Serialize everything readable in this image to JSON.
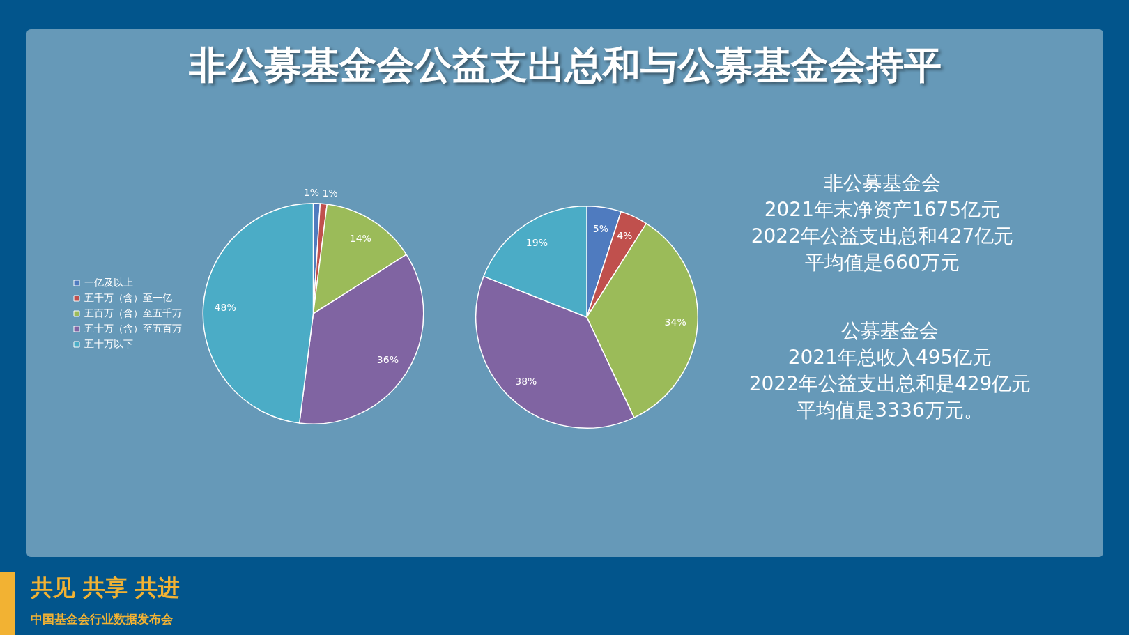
{
  "chart_data": [
    {
      "type": "pie",
      "title": "非公募基金会公益支出总和与公募基金会持平",
      "categories": [
        "一亿及以上",
        "五千万（含）至一亿",
        "五百万（含）至五千万",
        "五十万（含）至五百万",
        "五十万以下"
      ],
      "values": [
        1,
        1,
        14,
        36,
        48
      ],
      "colors": [
        "#4f7bbf",
        "#c0504d",
        "#9bbb59",
        "#8064a2",
        "#4bacc6"
      ],
      "value_labels": [
        "1%",
        "1%",
        "14%",
        "36%",
        "48%"
      ],
      "legend": "left"
    },
    {
      "type": "pie",
      "categories": [
        null,
        null,
        null,
        null,
        null
      ],
      "values": [
        5,
        4,
        34,
        38,
        19
      ],
      "colors": [
        "#4f7bbf",
        "#c0504d",
        "#9bbb59",
        "#8064a2",
        "#4bacc6"
      ],
      "value_labels": [
        "5%",
        "4%",
        "34%",
        "38%",
        "19%"
      ]
    },
    {
      "type": "other",
      "annotations": [
        "非公募基金会",
        "2021年末净资产1675亿元",
        "2022年公益支出总和427亿元",
        "平均值是660万元",
        "公募基金会",
        "2021年总收入495亿元",
        "2022年公益支出总和是429亿元",
        "平均值是3336万元。",
        "共见 共享 共进",
        "中国基金会行业数据发布会"
      ]
    }
  ]
}
